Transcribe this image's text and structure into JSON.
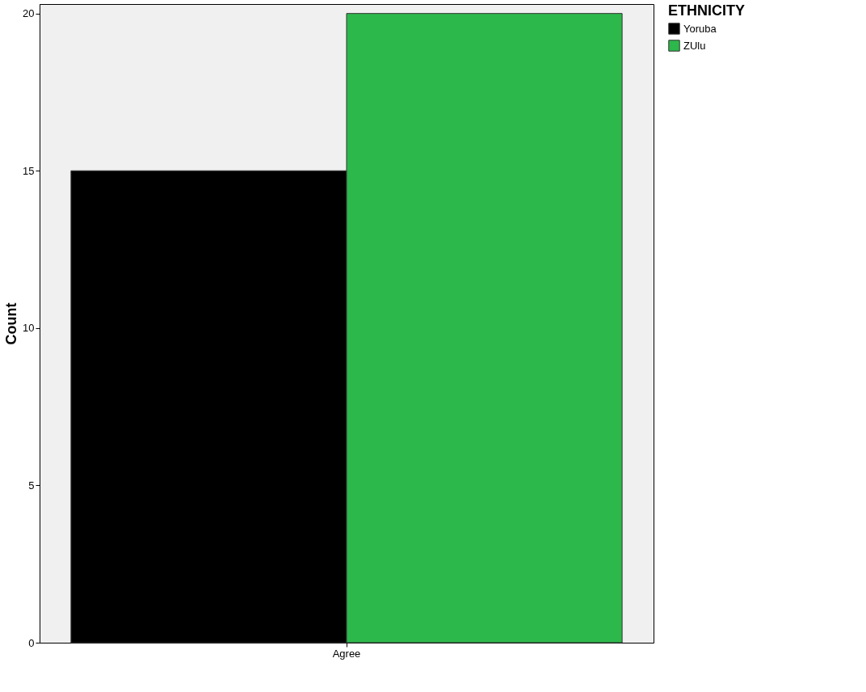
{
  "chart_data": {
    "type": "bar",
    "ylabel": "Count",
    "legend_title": "ETHNICITY",
    "categories": [
      "Agree"
    ],
    "series": [
      {
        "name": "Yoruba",
        "color": "#000000",
        "values": [
          15
        ]
      },
      {
        "name": "ZUlu",
        "color": "#2db84b",
        "values": [
          20
        ]
      }
    ],
    "ylim": [
      0,
      20.3
    ],
    "yticks": [
      0,
      5,
      10,
      15,
      20
    ],
    "grid": false,
    "legend": "top right"
  }
}
